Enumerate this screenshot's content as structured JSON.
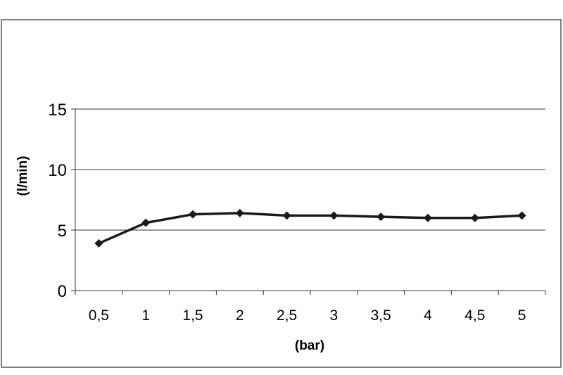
{
  "chart_data": {
    "type": "line",
    "title": "",
    "xlabel": "(bar)",
    "ylabel": "(l/min)",
    "categories": [
      "0,5",
      "1",
      "1,5",
      "2",
      "2,5",
      "3",
      "3,5",
      "4",
      "4,5",
      "5"
    ],
    "series": [
      {
        "values": [
          3.9,
          5.6,
          6.3,
          6.4,
          6.2,
          6.2,
          6.1,
          6.0,
          6.0,
          6.2
        ]
      }
    ],
    "ylim": [
      0,
      15
    ],
    "yticks": [
      "0",
      "5",
      "10",
      "15"
    ],
    "grid": "horizontal",
    "colors": {
      "line": "#1a1a1a",
      "grid": "#333333",
      "frame": "#555555"
    }
  }
}
